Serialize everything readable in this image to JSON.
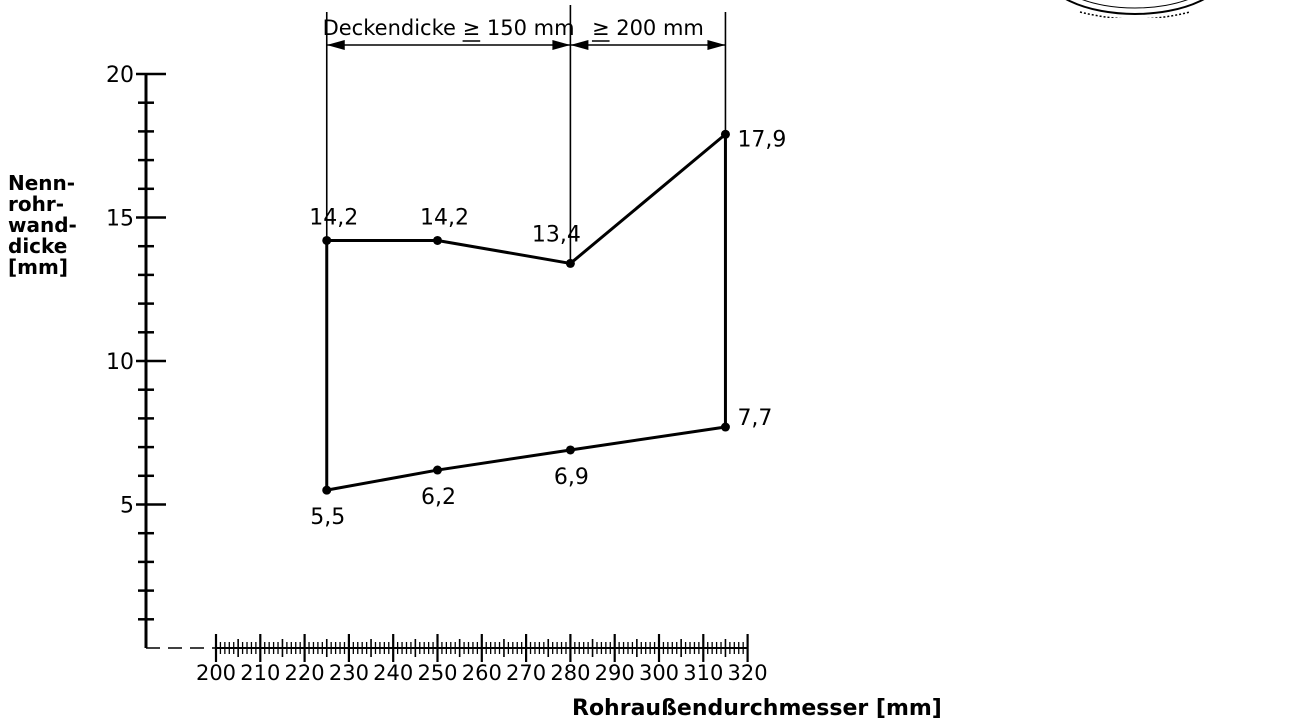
{
  "chart_data": {
    "type": "line",
    "xlabel": "Rohraußendurchmesser [mm]",
    "ylabel_lines": [
      "Nenn-",
      "rohr-",
      "wand-",
      "dicke",
      "[mm]"
    ],
    "xlim": [
      200,
      320
    ],
    "ylim": [
      0,
      20
    ],
    "x_ticks": [
      "200",
      "210",
      "220",
      "230",
      "240",
      "250",
      "260",
      "270",
      "280",
      "290",
      "300",
      "310",
      "320"
    ],
    "y_ticks": [
      "5",
      "10",
      "15",
      "20"
    ],
    "series": [
      {
        "x": [
          225,
          250,
          280,
          315
        ],
        "y": [
          14.2,
          14.2,
          13.4,
          17.9
        ],
        "labels": [
          "14,2",
          "14,2",
          "13,4",
          "17,9"
        ]
      },
      {
        "x": [
          225,
          250,
          280,
          315
        ],
        "y": [
          5.5,
          6.2,
          6.9,
          7.7
        ],
        "labels": [
          "5,5",
          "6,2",
          "6,9",
          "7,7"
        ]
      }
    ],
    "dimension_annotations": [
      {
        "label": "Deckendicke ≥ 150 mm",
        "x_from": 225,
        "x_to": 280
      },
      {
        "label": "≥ 200 mm",
        "x_from": 280,
        "x_to": 315
      }
    ]
  }
}
